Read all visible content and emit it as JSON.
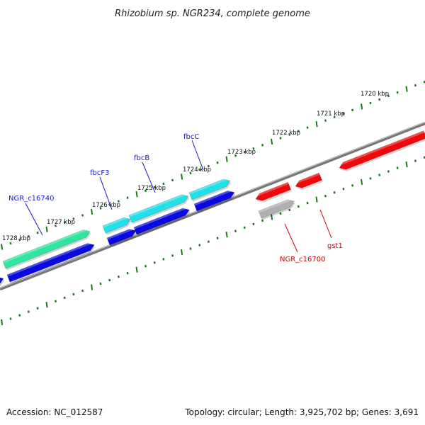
{
  "title": "Rhizobium sp. NGR234, complete genome",
  "footer": {
    "accession": "Accession: NC_012587",
    "topology": "Topology: circular; Length: 3,925,702 bp; Genes: 3,691"
  },
  "kbp_labels": [
    "1720 kbp",
    "1721 kbp",
    "1722 kbp",
    "1723 kbp",
    "1724 kbp",
    "1725 kbp",
    "1726 kbp",
    "1727 kbp",
    "1728 kbp"
  ],
  "gene_labels": {
    "ngr_c16740": "NGR_c16740",
    "fbcf3": "fbcF3",
    "fbcb": "fbcB",
    "fbcc": "fbcC",
    "ngr_c16700": "NGR_c16700",
    "gst1": "gst1"
  },
  "colors": {
    "backbone": "#777777",
    "tick": "#1a7a1a",
    "cds_blue": "#0a0adf",
    "cds_cyan": "#22e0e8",
    "cds_teal": "#2ee6a0",
    "cds_red": "#ee0a0a",
    "cds_gray": "#b0b0b0",
    "label_blue": "#1a1acc",
    "label_red": "#cc0000"
  }
}
